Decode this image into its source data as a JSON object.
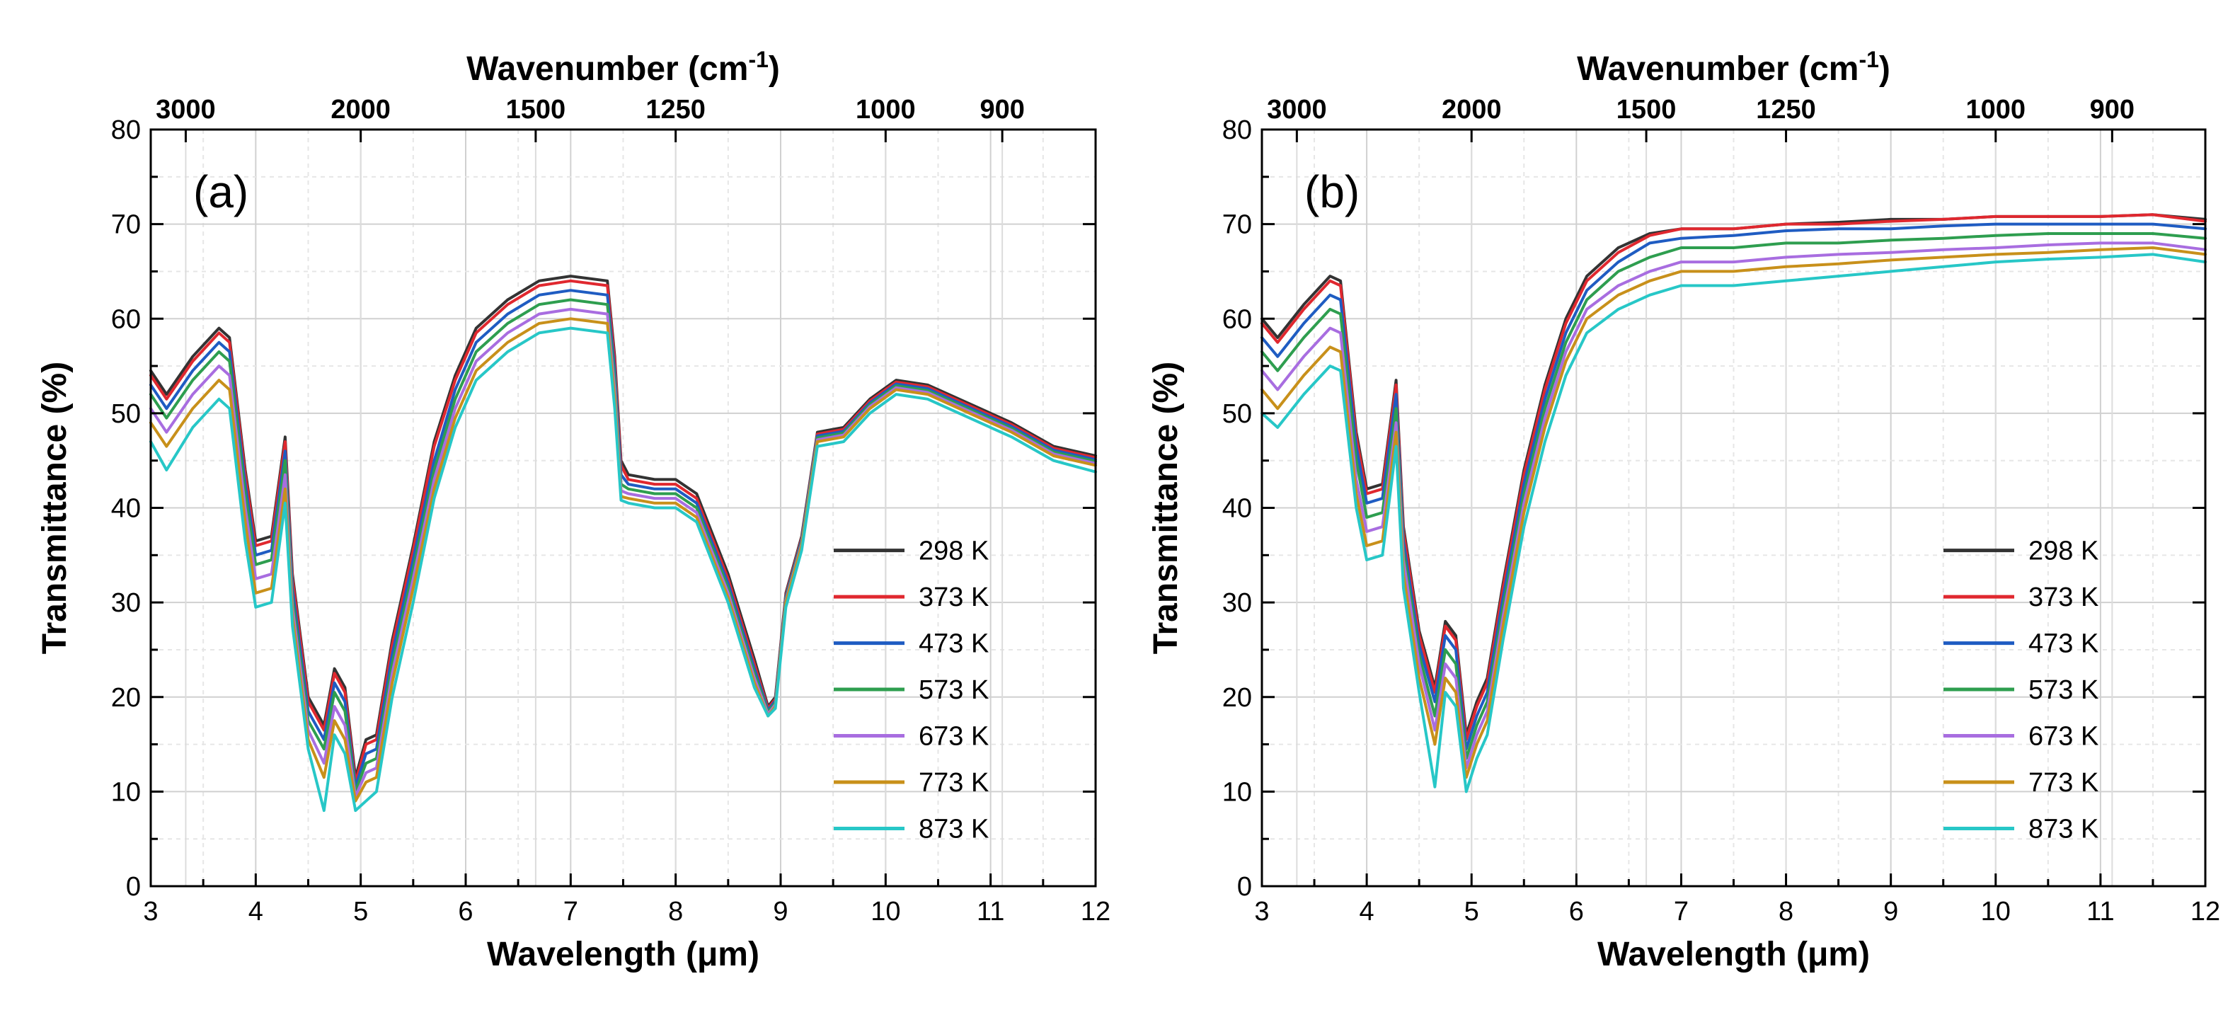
{
  "chart_data": [
    {
      "type": "line",
      "panel_label": "(a)",
      "xlabel": "Wavelength (μm)",
      "ylabel": "Transmittance (%)",
      "top_axis_label": "Wavenumber (cm-1)",
      "top_axis_label_base": "Wavenumber (cm",
      "top_axis_label_sup": "-1",
      "top_axis_label_end": ")",
      "xlim": [
        3,
        12
      ],
      "ylim": [
        0,
        80
      ],
      "xticks": [
        3,
        4,
        5,
        6,
        7,
        8,
        9,
        10,
        11,
        12
      ],
      "yticks": [
        0,
        10,
        20,
        30,
        40,
        50,
        60,
        70,
        80
      ],
      "xtick_labels": [
        "3",
        "4",
        "5",
        "6",
        "7",
        "8",
        "9",
        "10",
        "11",
        "12"
      ],
      "ytick_labels": [
        "0",
        "10",
        "20",
        "30",
        "40",
        "50",
        "60",
        "70",
        "80"
      ],
      "top_ticks": [
        3000,
        2000,
        1500,
        1250,
        1000,
        900
      ],
      "top_tick_labels": [
        "3000",
        "2000",
        "1500",
        "1250",
        "1000",
        "900"
      ],
      "legend": "bottom-right",
      "grid": true,
      "x": [
        3.0,
        3.15,
        3.4,
        3.65,
        3.75,
        3.9,
        4.0,
        4.15,
        4.28,
        4.35,
        4.5,
        4.65,
        4.75,
        4.85,
        4.95,
        5.05,
        5.15,
        5.3,
        5.5,
        5.7,
        5.9,
        6.1,
        6.4,
        6.7,
        7.0,
        7.35,
        7.42,
        7.48,
        7.55,
        7.8,
        8.0,
        8.2,
        8.5,
        8.75,
        8.88,
        8.95,
        9.05,
        9.2,
        9.35,
        9.6,
        9.85,
        10.1,
        10.4,
        10.8,
        11.2,
        11.6,
        12.0
      ],
      "series": [
        {
          "name": "298 K",
          "color": "#333333",
          "values": [
            54.5,
            52.0,
            56.0,
            59.0,
            58.0,
            44.0,
            36.5,
            37.0,
            47.5,
            33.0,
            20.0,
            17.0,
            23.0,
            21.0,
            11.5,
            15.5,
            16.0,
            26.0,
            36.0,
            47.0,
            54.0,
            59.0,
            62.0,
            64.0,
            64.5,
            64.0,
            56.0,
            45.0,
            43.5,
            43.0,
            43.0,
            41.5,
            33.0,
            24.0,
            19.0,
            20.0,
            31.0,
            37.0,
            48.0,
            48.5,
            51.5,
            53.5,
            53.0,
            51.0,
            49.0,
            46.5,
            45.5
          ]
        },
        {
          "name": "373 K",
          "color": "#e0282f",
          "values": [
            54.0,
            51.5,
            55.5,
            58.5,
            57.5,
            43.5,
            36.0,
            36.5,
            47.0,
            32.5,
            19.5,
            16.5,
            22.5,
            20.5,
            11.0,
            15.0,
            15.5,
            25.5,
            35.5,
            46.5,
            53.5,
            58.5,
            61.5,
            63.5,
            64.0,
            63.5,
            55.5,
            44.5,
            43.0,
            42.5,
            42.5,
            41.0,
            32.5,
            23.5,
            18.8,
            19.8,
            30.8,
            36.8,
            47.8,
            48.3,
            51.3,
            53.3,
            52.8,
            50.8,
            48.8,
            46.3,
            45.3
          ]
        },
        {
          "name": "473 K",
          "color": "#1f5cc2",
          "values": [
            53.0,
            50.5,
            54.5,
            57.5,
            56.5,
            42.5,
            35.0,
            35.5,
            46.0,
            31.5,
            18.5,
            15.5,
            21.5,
            19.5,
            10.5,
            14.0,
            14.5,
            24.5,
            34.5,
            45.0,
            52.5,
            57.5,
            60.5,
            62.5,
            63.0,
            62.5,
            54.5,
            43.5,
            42.5,
            42.0,
            42.0,
            40.5,
            32.0,
            23.0,
            18.6,
            19.6,
            30.6,
            36.6,
            47.6,
            48.1,
            51.1,
            53.1,
            52.6,
            50.6,
            48.6,
            46.1,
            45.1
          ]
        },
        {
          "name": "573 K",
          "color": "#2e9e4f",
          "values": [
            52.0,
            49.5,
            53.5,
            56.5,
            55.5,
            41.5,
            34.0,
            34.5,
            45.0,
            30.5,
            17.5,
            14.5,
            20.5,
            18.5,
            10.0,
            13.0,
            13.5,
            23.5,
            33.5,
            44.0,
            51.5,
            56.5,
            59.5,
            61.5,
            62.0,
            61.5,
            53.5,
            42.5,
            42.0,
            41.5,
            41.5,
            40.0,
            31.5,
            22.5,
            18.4,
            19.4,
            30.4,
            36.4,
            47.4,
            47.9,
            50.9,
            52.9,
            52.4,
            50.4,
            48.4,
            45.9,
            44.9
          ]
        },
        {
          "name": "673 K",
          "color": "#a86de0",
          "values": [
            50.5,
            48.0,
            52.0,
            55.0,
            54.0,
            40.0,
            32.5,
            33.0,
            43.5,
            29.5,
            16.5,
            13.0,
            19.0,
            17.0,
            9.5,
            12.0,
            12.5,
            22.5,
            32.5,
            43.0,
            50.5,
            55.5,
            58.5,
            60.5,
            61.0,
            60.5,
            52.5,
            41.8,
            41.5,
            41.0,
            41.0,
            39.5,
            31.0,
            22.0,
            18.2,
            19.2,
            30.2,
            36.2,
            47.2,
            47.7,
            50.7,
            52.7,
            52.2,
            50.2,
            48.2,
            45.7,
            44.7
          ]
        },
        {
          "name": "773 K",
          "color": "#c8901a",
          "values": [
            49.0,
            46.5,
            50.5,
            53.5,
            52.5,
            38.5,
            31.0,
            31.5,
            42.0,
            28.5,
            15.5,
            11.5,
            17.5,
            15.5,
            9.0,
            11.0,
            11.5,
            21.5,
            31.5,
            42.0,
            49.5,
            54.5,
            57.5,
            59.5,
            60.0,
            59.5,
            51.5,
            41.2,
            41.0,
            40.5,
            40.5,
            39.0,
            30.5,
            21.5,
            18.0,
            19.0,
            30.0,
            36.0,
            47.0,
            47.5,
            50.5,
            52.5,
            52.0,
            50.0,
            48.0,
            45.5,
            44.5
          ]
        },
        {
          "name": "873 K",
          "color": "#27c7c7",
          "values": [
            47.0,
            44.0,
            48.5,
            51.5,
            50.5,
            36.5,
            29.5,
            30.0,
            40.5,
            27.5,
            14.5,
            8.0,
            16.0,
            14.0,
            8.0,
            9.0,
            10.0,
            20.0,
            30.0,
            41.0,
            48.5,
            53.5,
            56.5,
            58.5,
            59.0,
            58.5,
            50.5,
            40.8,
            40.5,
            40.0,
            40.0,
            38.5,
            30.0,
            21.0,
            18.0,
            18.8,
            29.5,
            35.5,
            46.5,
            47.0,
            50.0,
            52.0,
            51.5,
            49.5,
            47.5,
            45.0,
            43.8
          ]
        }
      ]
    },
    {
      "type": "line",
      "panel_label": "(b)",
      "xlabel": "Wavelength (μm)",
      "ylabel": "Transmittance (%)",
      "top_axis_label": "Wavenumber (cm-1)",
      "top_axis_label_base": "Wavenumber (cm",
      "top_axis_label_sup": "-1",
      "top_axis_label_end": ")",
      "xlim": [
        3,
        12
      ],
      "ylim": [
        0,
        80
      ],
      "xticks": [
        3,
        4,
        5,
        6,
        7,
        8,
        9,
        10,
        11,
        12
      ],
      "yticks": [
        0,
        10,
        20,
        30,
        40,
        50,
        60,
        70,
        80
      ],
      "xtick_labels": [
        "3",
        "4",
        "5",
        "6",
        "7",
        "8",
        "9",
        "10",
        "11",
        "12"
      ],
      "ytick_labels": [
        "0",
        "10",
        "20",
        "30",
        "40",
        "50",
        "60",
        "70",
        "80"
      ],
      "top_ticks": [
        3000,
        2000,
        1500,
        1250,
        1000,
        900
      ],
      "top_tick_labels": [
        "3000",
        "2000",
        "1500",
        "1250",
        "1000",
        "900"
      ],
      "legend": "bottom-right",
      "grid": true,
      "x": [
        3.0,
        3.15,
        3.4,
        3.65,
        3.75,
        3.9,
        4.0,
        4.15,
        4.28,
        4.35,
        4.5,
        4.65,
        4.75,
        4.85,
        4.95,
        5.05,
        5.15,
        5.3,
        5.5,
        5.7,
        5.9,
        6.1,
        6.4,
        6.7,
        7.0,
        7.5,
        8.0,
        8.5,
        9.0,
        9.5,
        10.0,
        10.5,
        11.0,
        11.5,
        12.0
      ],
      "series": [
        {
          "name": "298 K",
          "color": "#333333",
          "values": [
            60.0,
            58.0,
            61.5,
            64.5,
            64.0,
            48.0,
            42.0,
            42.5,
            53.5,
            38.0,
            27.0,
            21.0,
            28.0,
            26.5,
            16.0,
            19.5,
            22.0,
            32.0,
            44.0,
            53.0,
            60.0,
            64.5,
            67.5,
            69.0,
            69.5,
            69.5,
            70.0,
            70.2,
            70.5,
            70.5,
            70.8,
            70.8,
            70.8,
            71.0,
            70.5
          ]
        },
        {
          "name": "373 K",
          "color": "#e0282f",
          "values": [
            59.5,
            57.5,
            61.0,
            64.0,
            63.5,
            47.5,
            41.5,
            42.0,
            53.0,
            37.5,
            26.5,
            20.5,
            27.5,
            26.0,
            15.5,
            19.0,
            21.5,
            31.5,
            43.5,
            52.5,
            59.5,
            64.0,
            67.0,
            68.8,
            69.5,
            69.5,
            70.0,
            70.0,
            70.3,
            70.5,
            70.8,
            70.8,
            70.8,
            71.0,
            70.3
          ]
        },
        {
          "name": "473 K",
          "color": "#1f5cc2",
          "values": [
            58.0,
            56.0,
            59.5,
            62.5,
            62.0,
            46.5,
            40.5,
            41.0,
            52.0,
            36.5,
            25.5,
            19.5,
            26.5,
            25.0,
            14.5,
            18.0,
            20.5,
            30.5,
            42.5,
            51.5,
            58.5,
            63.0,
            66.0,
            68.0,
            68.5,
            68.8,
            69.3,
            69.5,
            69.5,
            69.8,
            70.0,
            70.0,
            70.0,
            70.0,
            69.5
          ]
        },
        {
          "name": "573 K",
          "color": "#2e9e4f",
          "values": [
            56.5,
            54.5,
            58.0,
            61.0,
            60.5,
            45.0,
            39.0,
            39.5,
            50.5,
            35.5,
            24.5,
            18.0,
            25.0,
            23.5,
            13.5,
            17.0,
            19.5,
            29.5,
            41.5,
            50.5,
            57.5,
            62.0,
            65.0,
            66.5,
            67.5,
            67.5,
            68.0,
            68.0,
            68.3,
            68.5,
            68.8,
            69.0,
            69.0,
            69.0,
            68.5
          ]
        },
        {
          "name": "673 K",
          "color": "#a86de0",
          "values": [
            54.5,
            52.5,
            56.0,
            59.0,
            58.5,
            43.0,
            37.5,
            38.0,
            49.0,
            34.5,
            23.5,
            16.5,
            23.5,
            22.0,
            12.5,
            16.0,
            18.5,
            28.5,
            40.5,
            49.5,
            56.5,
            61.0,
            63.5,
            65.0,
            66.0,
            66.0,
            66.5,
            66.8,
            67.0,
            67.3,
            67.5,
            67.8,
            68.0,
            68.0,
            67.3
          ]
        },
        {
          "name": "773 K",
          "color": "#c8901a",
          "values": [
            52.5,
            50.5,
            54.0,
            57.0,
            56.5,
            41.5,
            36.0,
            36.5,
            48.0,
            33.0,
            22.0,
            15.0,
            22.0,
            20.5,
            11.5,
            15.0,
            17.5,
            27.5,
            39.5,
            48.5,
            55.5,
            60.0,
            62.5,
            64.0,
            65.0,
            65.0,
            65.5,
            65.8,
            66.2,
            66.5,
            66.8,
            67.0,
            67.3,
            67.5,
            66.8
          ]
        },
        {
          "name": "873 K",
          "color": "#27c7c7",
          "values": [
            50.0,
            48.5,
            52.0,
            55.0,
            54.5,
            40.0,
            34.5,
            35.0,
            46.5,
            31.5,
            20.5,
            10.5,
            20.5,
            19.0,
            10.0,
            13.5,
            16.0,
            26.0,
            38.0,
            47.0,
            54.0,
            58.5,
            61.0,
            62.5,
            63.5,
            63.5,
            64.0,
            64.5,
            65.0,
            65.5,
            66.0,
            66.3,
            66.5,
            66.8,
            66.0
          ]
        }
      ]
    }
  ]
}
